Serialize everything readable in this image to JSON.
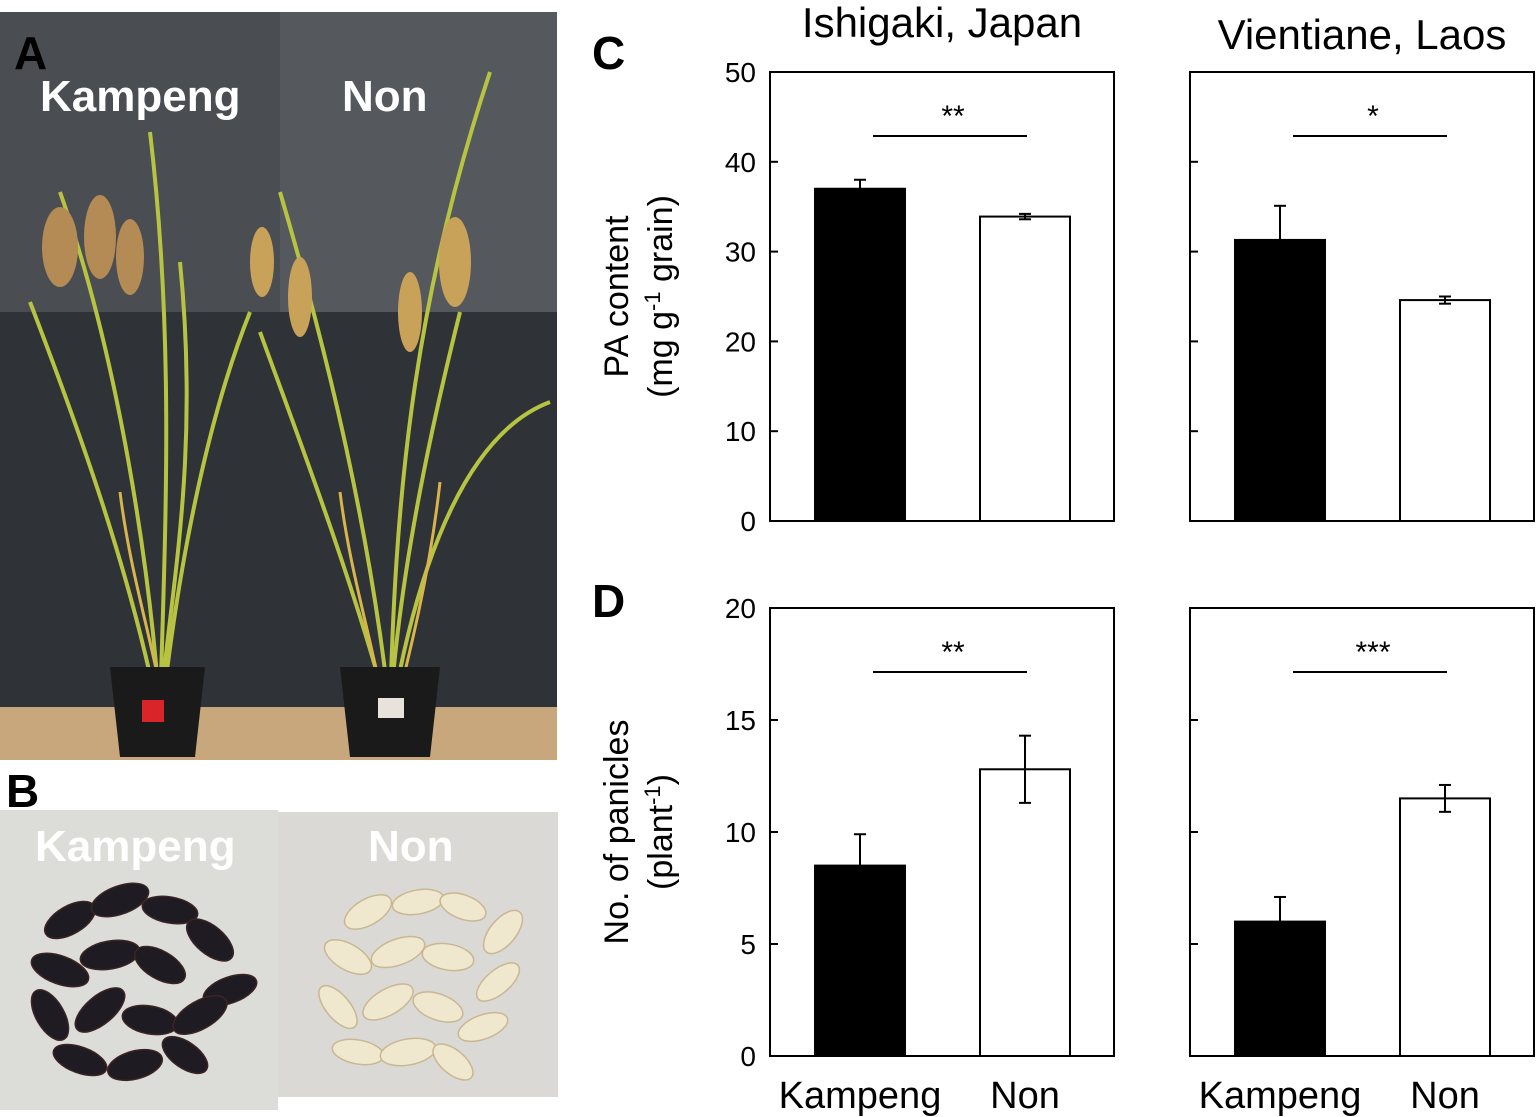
{
  "panels": {
    "a": {
      "letter": "A",
      "left_label": "Kampeng",
      "right_label": "Non"
    },
    "b": {
      "letter": "B",
      "left_label": "Kampeng",
      "right_label": "Non"
    },
    "c": {
      "letter": "C"
    },
    "d": {
      "letter": "D"
    }
  },
  "sites": {
    "left": "Ishigaki, Japan",
    "right": "Vientiane, Laos"
  },
  "colors": {
    "kampeng_bar": "#000000",
    "non_bar": "#ffffff",
    "kampeng_grain": "#1e1c22",
    "non_grain": "#f0e7cf"
  },
  "chart_data": [
    {
      "id": "C-Ishigaki",
      "type": "bar",
      "categories": [
        "Kampeng",
        "Non"
      ],
      "values": [
        37.0,
        33.9
      ],
      "errors": [
        1.0,
        0.3
      ],
      "ylabel_line1": "PA content",
      "ylabel_line2_prefix": "(mg g",
      "ylabel_line2_sup": "-1",
      "ylabel_line2_suffix": " grain)",
      "ylim": [
        0,
        50
      ],
      "yticks": [
        0,
        10,
        20,
        30,
        40,
        50
      ],
      "significance": "**"
    },
    {
      "id": "C-Vientiane",
      "type": "bar",
      "categories": [
        "Kampeng",
        "Non"
      ],
      "values": [
        31.3,
        24.6
      ],
      "errors": [
        3.8,
        0.4
      ],
      "ylim": [
        0,
        50
      ],
      "significance": "*"
    },
    {
      "id": "D-Ishigaki",
      "type": "bar",
      "categories": [
        "Kampeng",
        "Non"
      ],
      "values": [
        8.5,
        12.8
      ],
      "errors": [
        1.4,
        1.5
      ],
      "ylabel_line1": "No. of panicles",
      "ylabel_line2_prefix": "(plant",
      "ylabel_line2_sup": "-1",
      "ylabel_line2_suffix": ")",
      "ylim": [
        0,
        20
      ],
      "yticks": [
        0,
        5,
        10,
        15,
        20
      ],
      "significance": "**",
      "xticklabels": [
        "Kampeng",
        "Non"
      ]
    },
    {
      "id": "D-Vientiane",
      "type": "bar",
      "categories": [
        "Kampeng",
        "Non"
      ],
      "values": [
        6.0,
        11.5
      ],
      "errors": [
        1.1,
        0.6
      ],
      "ylim": [
        0,
        20
      ],
      "significance": "***",
      "xticklabels": [
        "Kampeng",
        "Non"
      ]
    }
  ]
}
